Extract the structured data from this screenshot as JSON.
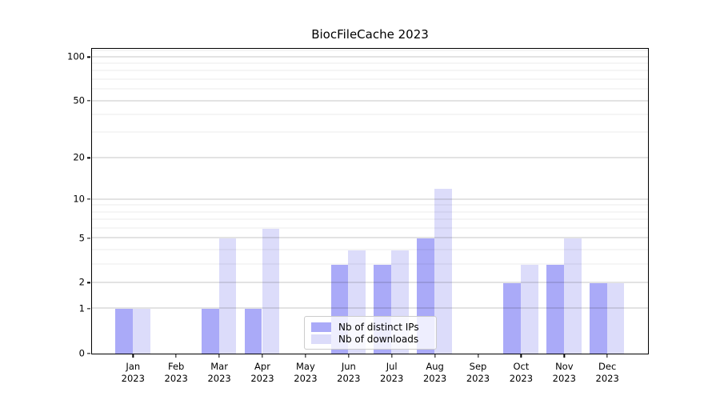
{
  "title": "BiocFileCache 2023",
  "legend": {
    "items": [
      {
        "label": "Nb of distinct IPs",
        "color": "#aaaaf8"
      },
      {
        "label": "Nb of downloads",
        "color": "#dcdcfa"
      }
    ]
  },
  "colors": {
    "distinct_ips_bar": "#aaaaf8",
    "downloads_bar": "#dcdcfa",
    "axis": "#000000",
    "grid_major": "#c8c8c8",
    "grid_minor": "#ebebeb"
  },
  "chart_data": {
    "type": "bar",
    "title": "BiocFileCache 2023",
    "categories": [
      "Jan 2023",
      "Feb 2023",
      "Mar 2023",
      "Apr 2023",
      "May 2023",
      "Jun 2023",
      "Jul 2023",
      "Aug 2023",
      "Sep 2023",
      "Oct 2023",
      "Nov 2023",
      "Dec 2023"
    ],
    "series": [
      {
        "name": "Nb of distinct IPs",
        "color": "#aaaaf8",
        "values": [
          1,
          0,
          1,
          1,
          0,
          3,
          3,
          5,
          0,
          2,
          3,
          2
        ]
      },
      {
        "name": "Nb of downloads",
        "color": "#dcdcfa",
        "values": [
          1,
          0,
          5,
          6,
          0,
          4,
          4,
          12,
          0,
          3,
          5,
          2
        ]
      }
    ],
    "xlabel": "",
    "ylabel": "",
    "yscale": "log1p",
    "ylim": [
      0,
      113
    ],
    "y_major_ticks": [
      0,
      1,
      2,
      5,
      10,
      20,
      50,
      100
    ],
    "y_minor_gridlines": [
      3,
      4,
      6,
      7,
      8,
      9,
      30,
      40,
      60,
      70,
      80,
      90,
      110
    ],
    "grid": true,
    "legend_position": "lower center"
  }
}
